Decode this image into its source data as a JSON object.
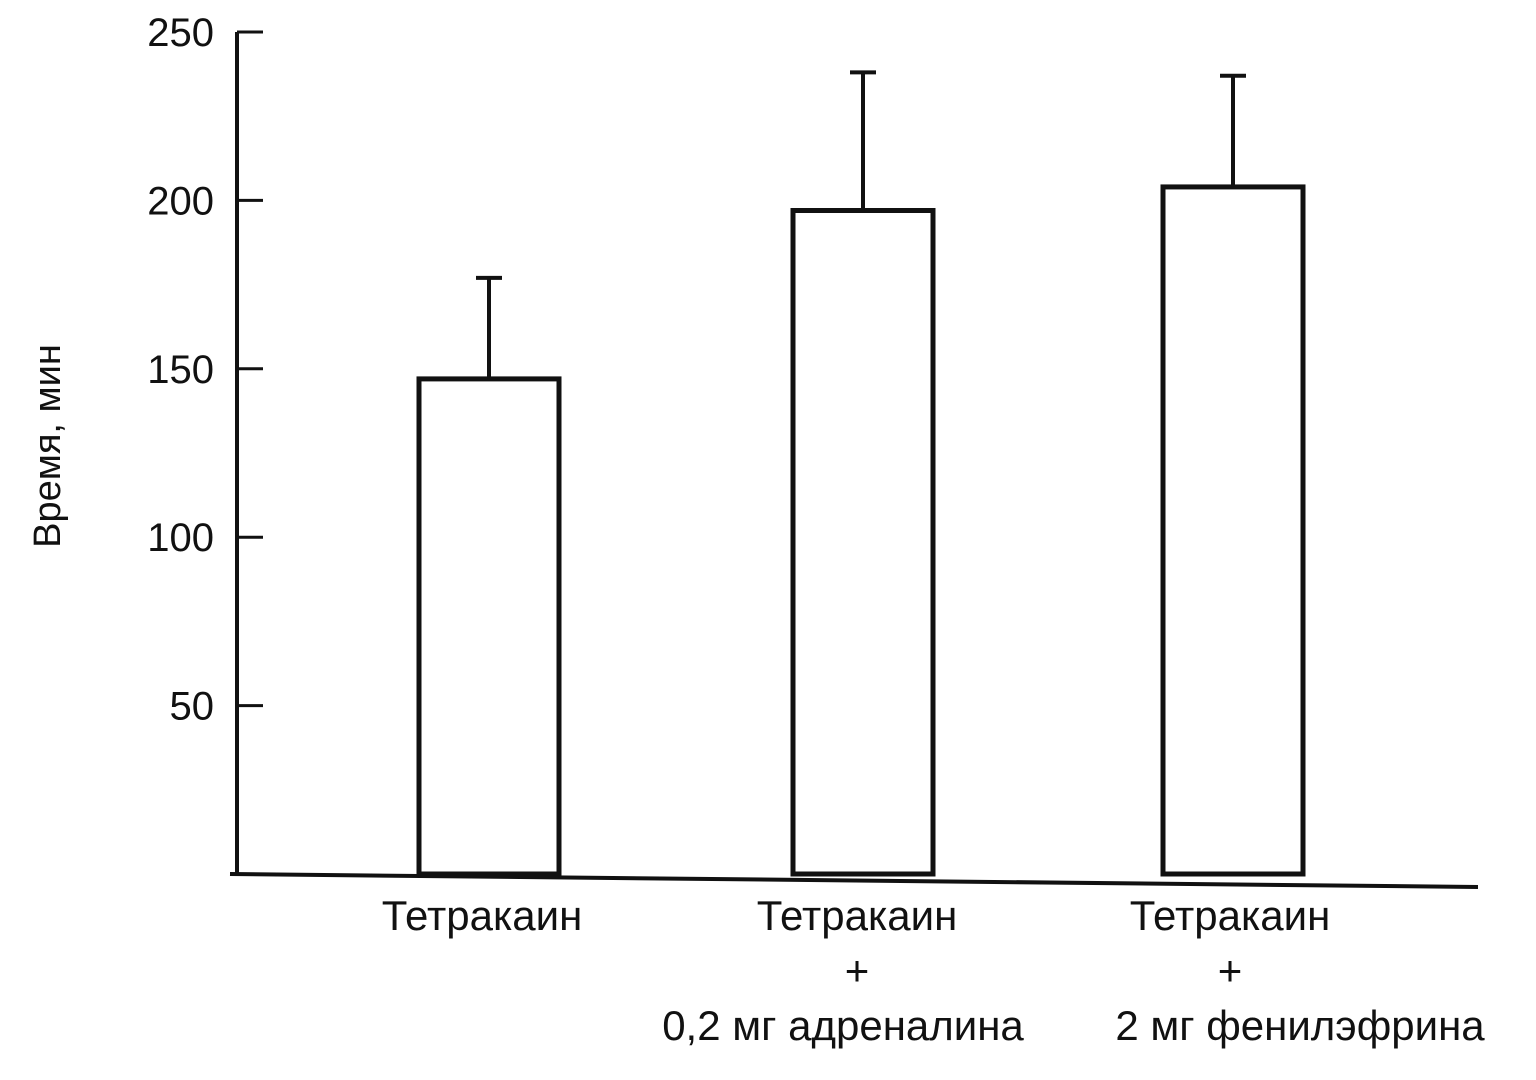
{
  "chart_data": {
    "type": "bar",
    "ylabel": "Время, мин",
    "xlabel": "",
    "ylim": [
      0,
      250
    ],
    "yticks": [
      50,
      100,
      150,
      200,
      250
    ],
    "categories": [
      [
        "Тетракаин"
      ],
      [
        "Тетракаин",
        "+",
        "0,2 мг адреналина"
      ],
      [
        "Тетракаин",
        "+",
        "2 мг фенилэфрина"
      ]
    ],
    "series": [
      {
        "values": [
          147,
          197,
          204
        ],
        "error_plus": [
          30,
          41,
          33
        ]
      }
    ],
    "grid": false,
    "legend": "none",
    "colors": {
      "bar_fill": "#ffffff",
      "stroke": "#111111"
    }
  }
}
